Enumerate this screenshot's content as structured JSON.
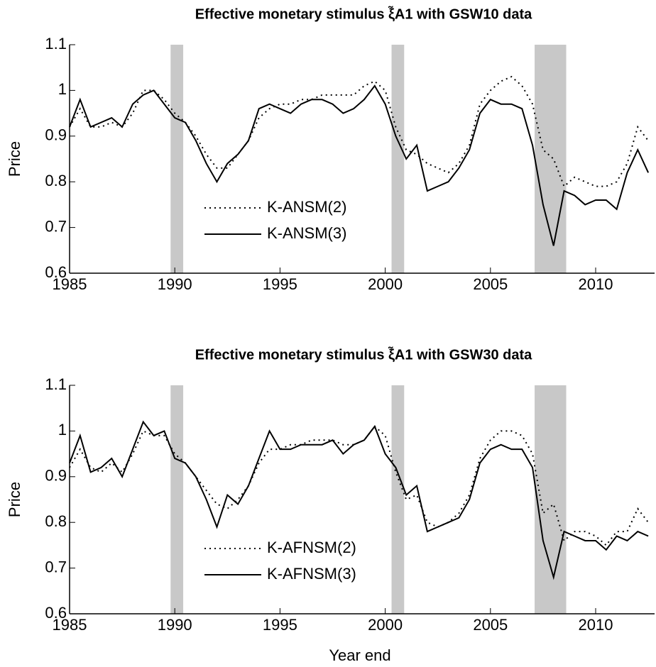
{
  "chart_data": [
    {
      "type": "line",
      "title": "Effective monetary stimulus ξ̃A1 with GSW10 data",
      "ylabel": "Price",
      "x": [
        1985,
        1985.5,
        1986,
        1986.5,
        1987,
        1987.5,
        1988,
        1988.5,
        1989,
        1989.5,
        1990,
        1990.5,
        1991,
        1991.5,
        1992,
        1992.5,
        1993,
        1993.5,
        1994,
        1994.5,
        1995,
        1995.5,
        1996,
        1996.5,
        1997,
        1997.5,
        1998,
        1998.5,
        1999,
        1999.5,
        2000,
        2000.5,
        2001,
        2001.5,
        2002,
        2002.5,
        2003,
        2003.5,
        2004,
        2004.5,
        2005,
        2005.5,
        2006,
        2006.5,
        2007,
        2007.5,
        2008,
        2008.5,
        2009,
        2009.5,
        2010,
        2010.5,
        2011,
        2011.5,
        2012,
        2012.5
      ],
      "series": [
        {
          "name": "K-ANSM(2)",
          "color": "#000000",
          "style": "dotted",
          "values": [
            0.92,
            0.96,
            0.92,
            0.92,
            0.93,
            0.92,
            0.95,
            1.0,
            1.0,
            0.98,
            0.95,
            0.93,
            0.9,
            0.86,
            0.83,
            0.83,
            0.86,
            0.89,
            0.94,
            0.96,
            0.97,
            0.97,
            0.98,
            0.98,
            0.99,
            0.99,
            0.99,
            0.99,
            1.01,
            1.02,
            1.0,
            0.92,
            0.87,
            0.86,
            0.84,
            0.83,
            0.82,
            0.84,
            0.88,
            0.97,
            1.0,
            1.02,
            1.03,
            1.01,
            0.97,
            0.87,
            0.85,
            0.79,
            0.81,
            0.8,
            0.79,
            0.79,
            0.8,
            0.84,
            0.92,
            0.89
          ]
        },
        {
          "name": "K-ANSM(3)",
          "color": "#000000",
          "style": "solid",
          "values": [
            0.92,
            0.98,
            0.92,
            0.93,
            0.94,
            0.92,
            0.97,
            0.99,
            1.0,
            0.97,
            0.94,
            0.93,
            0.89,
            0.84,
            0.8,
            0.84,
            0.86,
            0.89,
            0.96,
            0.97,
            0.96,
            0.95,
            0.97,
            0.98,
            0.98,
            0.97,
            0.95,
            0.96,
            0.98,
            1.01,
            0.97,
            0.9,
            0.85,
            0.88,
            0.78,
            0.79,
            0.8,
            0.83,
            0.87,
            0.95,
            0.98,
            0.97,
            0.97,
            0.96,
            0.88,
            0.75,
            0.66,
            0.78,
            0.77,
            0.75,
            0.76,
            0.76,
            0.74,
            0.82,
            0.87,
            0.82
          ]
        }
      ],
      "shaded_regions": [
        [
          1989.8,
          1990.4
        ],
        [
          2000.3,
          2000.9
        ],
        [
          2007.1,
          2008.6
        ]
      ],
      "xlim": [
        1985,
        2012.8
      ],
      "xticks": [
        1985,
        1990,
        1995,
        2000,
        2005,
        2010
      ],
      "ylim": [
        0.6,
        1.1
      ],
      "yticks": [
        0.6,
        0.7,
        0.8,
        0.9,
        1,
        1.1
      ],
      "legend_loc": "center"
    },
    {
      "type": "line",
      "title": "Effective monetary stimulus ξ̃A1 with GSW30 data",
      "ylabel": "Price",
      "xlabel": "Year end",
      "x": [
        1985,
        1985.5,
        1986,
        1986.5,
        1987,
        1987.5,
        1988,
        1988.5,
        1989,
        1989.5,
        1990,
        1990.5,
        1991,
        1991.5,
        1992,
        1992.5,
        1993,
        1993.5,
        1994,
        1994.5,
        1995,
        1995.5,
        1996,
        1996.5,
        1997,
        1997.5,
        1998,
        1998.5,
        1999,
        1999.5,
        2000,
        2000.5,
        2001,
        2001.5,
        2002,
        2002.5,
        2003,
        2003.5,
        2004,
        2004.5,
        2005,
        2005.5,
        2006,
        2006.5,
        2007,
        2007.5,
        2008,
        2008.5,
        2009,
        2009.5,
        2010,
        2010.5,
        2011,
        2011.5,
        2012,
        2012.5
      ],
      "series": [
        {
          "name": "K-AFNSM(2)",
          "color": "#000000",
          "style": "dotted",
          "values": [
            0.92,
            0.96,
            0.92,
            0.91,
            0.93,
            0.91,
            0.95,
            1.0,
            0.99,
            0.99,
            0.95,
            0.93,
            0.9,
            0.87,
            0.84,
            0.83,
            0.85,
            0.88,
            0.93,
            0.96,
            0.96,
            0.97,
            0.97,
            0.98,
            0.98,
            0.98,
            0.97,
            0.97,
            0.98,
            1.01,
            0.99,
            0.91,
            0.85,
            0.86,
            0.8,
            0.79,
            0.8,
            0.82,
            0.86,
            0.94,
            0.98,
            1.0,
            1.0,
            0.99,
            0.95,
            0.82,
            0.84,
            0.76,
            0.78,
            0.78,
            0.77,
            0.75,
            0.78,
            0.78,
            0.83,
            0.8
          ]
        },
        {
          "name": "K-AFNSM(3)",
          "color": "#000000",
          "style": "solid",
          "values": [
            0.93,
            0.99,
            0.91,
            0.92,
            0.94,
            0.9,
            0.96,
            1.02,
            0.99,
            1.0,
            0.94,
            0.93,
            0.9,
            0.85,
            0.79,
            0.86,
            0.84,
            0.88,
            0.94,
            1.0,
            0.96,
            0.96,
            0.97,
            0.97,
            0.97,
            0.98,
            0.95,
            0.97,
            0.98,
            1.01,
            0.95,
            0.92,
            0.86,
            0.88,
            0.78,
            0.79,
            0.8,
            0.81,
            0.85,
            0.93,
            0.96,
            0.97,
            0.96,
            0.96,
            0.92,
            0.76,
            0.68,
            0.78,
            0.77,
            0.76,
            0.76,
            0.74,
            0.77,
            0.76,
            0.78,
            0.77
          ]
        }
      ],
      "shaded_regions": [
        [
          1989.8,
          1990.4
        ],
        [
          2000.3,
          2000.9
        ],
        [
          2007.1,
          2008.6
        ]
      ],
      "xlim": [
        1985,
        2012.8
      ],
      "xticks": [
        1985,
        1990,
        1995,
        2000,
        2005,
        2010
      ],
      "ylim": [
        0.6,
        1.1
      ],
      "yticks": [
        0.6,
        0.7,
        0.8,
        0.9,
        1,
        1.1
      ],
      "legend_loc": "center"
    }
  ]
}
